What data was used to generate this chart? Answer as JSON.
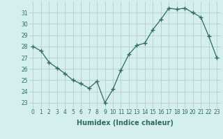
{
  "x": [
    0,
    1,
    2,
    3,
    4,
    5,
    6,
    7,
    8,
    9,
    10,
    11,
    12,
    13,
    14,
    15,
    16,
    17,
    18,
    19,
    20,
    21,
    22,
    23
  ],
  "y": [
    28.0,
    27.6,
    26.6,
    26.1,
    25.6,
    25.0,
    24.7,
    24.3,
    24.9,
    23.0,
    24.2,
    25.9,
    27.3,
    28.1,
    28.3,
    29.5,
    30.4,
    31.4,
    31.3,
    31.4,
    31.0,
    30.6,
    28.9,
    27.0
  ],
  "xlabel": "Humidex (Indice chaleur)",
  "xlim": [
    -0.5,
    23.5
  ],
  "ylim": [
    22.5,
    32.0
  ],
  "yticks": [
    23,
    24,
    25,
    26,
    27,
    28,
    29,
    30,
    31
  ],
  "xticks": [
    0,
    1,
    2,
    3,
    4,
    5,
    6,
    7,
    8,
    9,
    10,
    11,
    12,
    13,
    14,
    15,
    16,
    17,
    18,
    19,
    20,
    21,
    22,
    23
  ],
  "line_color": "#2e6b5e",
  "marker": "+",
  "marker_size": 5,
  "bg_color": "#d5efef",
  "grid_color": "#b0c8c8",
  "label_fontsize": 7,
  "tick_fontsize": 5.5
}
